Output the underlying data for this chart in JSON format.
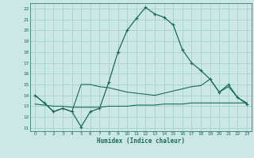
{
  "title": "",
  "xlabel": "Humidex (Indice chaleur)",
  "background_color": "#cce8e4",
  "grid_color": "#aad4ce",
  "line_color": "#1a6b5a",
  "x_ticks": [
    0,
    1,
    2,
    3,
    4,
    5,
    6,
    7,
    8,
    9,
    10,
    11,
    12,
    13,
    14,
    15,
    16,
    17,
    18,
    19,
    20,
    21,
    22,
    23
  ],
  "y_ticks": [
    11,
    12,
    13,
    14,
    15,
    16,
    17,
    18,
    19,
    20,
    21,
    22
  ],
  "ylim": [
    10.7,
    22.5
  ],
  "xlim": [
    -0.5,
    23.5
  ],
  "line1_x": [
    0,
    1,
    2,
    3,
    4,
    5,
    6,
    7,
    8,
    9,
    10,
    11,
    12,
    13,
    14,
    15,
    16,
    17,
    18,
    19,
    20,
    21,
    22,
    23
  ],
  "line1_y": [
    14.0,
    13.3,
    12.5,
    12.8,
    12.5,
    11.1,
    12.5,
    12.8,
    15.2,
    18.0,
    20.0,
    21.1,
    22.1,
    21.5,
    21.2,
    20.5,
    18.2,
    17.0,
    16.3,
    15.5,
    14.3,
    15.0,
    13.8,
    13.2
  ],
  "line2_x": [
    0,
    1,
    2,
    3,
    4,
    5,
    6,
    7,
    8,
    9,
    10,
    11,
    12,
    13,
    14,
    15,
    16,
    17,
    18,
    19,
    20,
    21,
    22,
    23
  ],
  "line2_y": [
    14.0,
    13.3,
    12.5,
    12.8,
    12.5,
    15.0,
    15.0,
    14.8,
    14.7,
    14.5,
    14.3,
    14.2,
    14.1,
    14.0,
    14.2,
    14.4,
    14.6,
    14.8,
    14.9,
    15.5,
    14.3,
    14.8,
    13.8,
    13.3
  ],
  "line3_x": [
    0,
    1,
    2,
    3,
    4,
    5,
    6,
    7,
    8,
    9,
    10,
    11,
    12,
    13,
    14,
    15,
    16,
    17,
    18,
    19,
    20,
    21,
    22,
    23
  ],
  "line3_y": [
    13.2,
    13.1,
    13.0,
    13.0,
    12.9,
    12.9,
    12.9,
    12.9,
    13.0,
    13.0,
    13.0,
    13.1,
    13.1,
    13.1,
    13.2,
    13.2,
    13.2,
    13.3,
    13.3,
    13.3,
    13.3,
    13.3,
    13.3,
    13.3
  ]
}
